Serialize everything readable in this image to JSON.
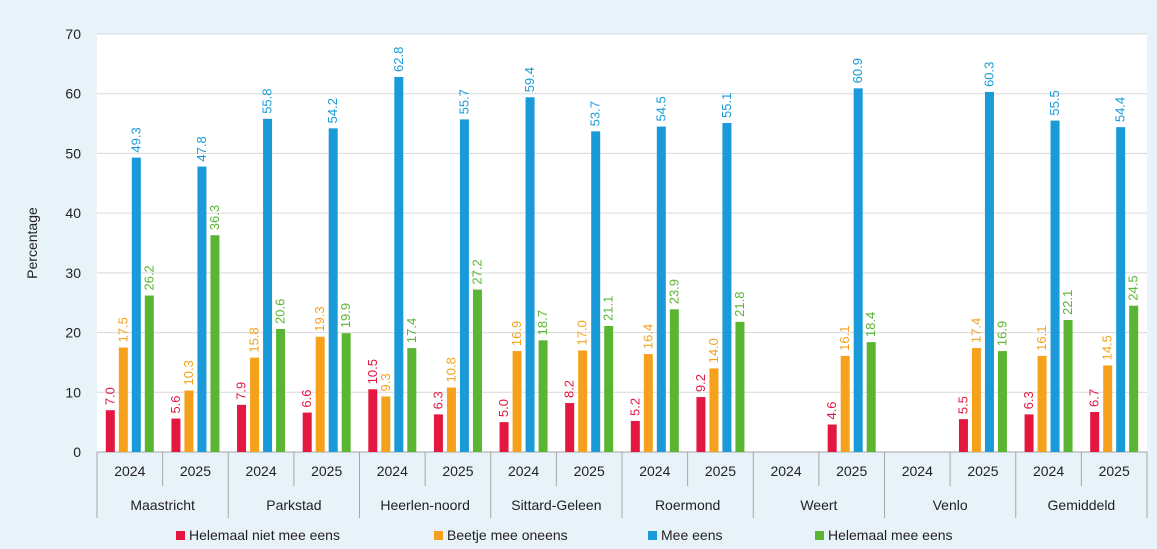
{
  "chart_data": {
    "type": "bar",
    "ylabel": "Percentage",
    "ylim": [
      0,
      70
    ],
    "yticks": [
      0,
      10,
      20,
      30,
      40,
      50,
      60,
      70
    ],
    "grid": true,
    "legend_position": "bottom",
    "groups": [
      "Maastricht",
      "Parkstad",
      "Heerlen-noord",
      "Sittard-Geleen",
      "Roermond",
      "Weert",
      "Venlo",
      "Gemiddeld"
    ],
    "years": [
      "2024",
      "2025"
    ],
    "series": [
      {
        "name": "Helemaal niet mee eens",
        "color": "#e3173f",
        "values": [
          7.0,
          5.6,
          7.9,
          6.6,
          10.5,
          6.3,
          5.0,
          8.2,
          5.2,
          9.2,
          null,
          4.6,
          null,
          5.5,
          6.3,
          6.7
        ],
        "labels": [
          "7.0",
          "5.6",
          "7.9",
          "6.6",
          "10.5",
          "6.3",
          "5.0",
          "8.2",
          "5.2",
          "9.2",
          "",
          "4.6",
          "",
          "5.5",
          "6.3",
          "6.7"
        ]
      },
      {
        "name": "Beetje mee oneens",
        "color": "#f5a11c",
        "values": [
          17.5,
          10.3,
          15.8,
          19.3,
          9.3,
          10.8,
          16.9,
          17.0,
          16.4,
          14.0,
          null,
          16.1,
          null,
          17.4,
          16.1,
          14.5
        ],
        "labels": [
          "17.5",
          "10.3",
          "15.8",
          "19.3",
          "9.3",
          "10.8",
          "16.9",
          "17.0",
          "16.4",
          "14.0",
          "",
          "16.1",
          "",
          "17.4",
          "16.1",
          "14.5"
        ]
      },
      {
        "name": "Mee eens",
        "color": "#1a9ad8",
        "values": [
          49.3,
          47.8,
          55.8,
          54.2,
          62.8,
          55.7,
          59.4,
          53.7,
          54.5,
          55.1,
          null,
          60.9,
          null,
          60.3,
          55.5,
          54.4
        ],
        "labels": [
          "49.3",
          "47.8",
          "55.8",
          "54.2",
          "62.8",
          "55.7",
          "59.4",
          "53.7",
          "54.5",
          "55.1",
          "",
          "60.9",
          "",
          "60.3",
          "55.5",
          "54.4"
        ]
      },
      {
        "name": "Helemaal mee eens",
        "color": "#5ab532",
        "values": [
          26.2,
          36.3,
          20.6,
          19.9,
          17.4,
          27.2,
          18.7,
          21.1,
          23.9,
          21.8,
          null,
          18.4,
          null,
          16.9,
          22.1,
          24.5
        ],
        "labels": [
          "26.2",
          "36.3",
          "20.6",
          "19.9",
          "17.4",
          "27.2",
          "18.7",
          "21.1",
          "23.9",
          "21.8",
          "",
          "18.4",
          "",
          "16.9",
          "22.1",
          "24.5"
        ]
      }
    ]
  }
}
